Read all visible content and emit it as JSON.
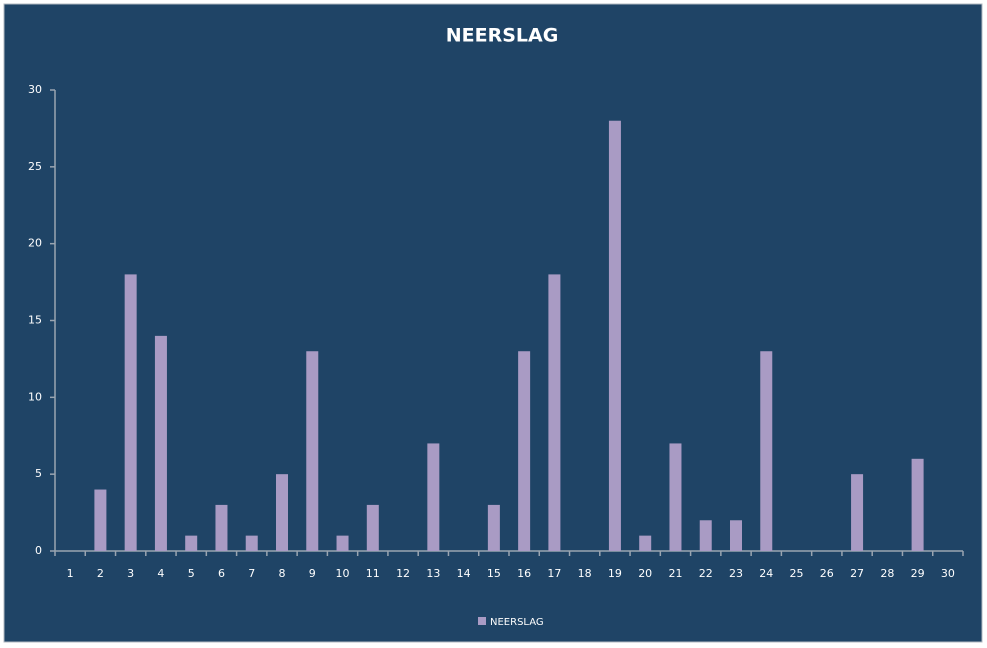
{
  "chart_data": {
    "type": "bar",
    "title": "NEERSLAG",
    "categories": [
      "1",
      "2",
      "3",
      "4",
      "5",
      "6",
      "7",
      "8",
      "9",
      "10",
      "11",
      "12",
      "13",
      "14",
      "15",
      "16",
      "17",
      "18",
      "19",
      "20",
      "21",
      "22",
      "23",
      "24",
      "25",
      "26",
      "27",
      "28",
      "29",
      "30"
    ],
    "series": [
      {
        "name": "NEERSLAG",
        "color": "#a99bc4",
        "values": [
          0,
          4,
          18,
          14,
          1,
          3,
          1,
          5,
          13,
          1,
          3,
          0,
          7,
          0,
          3,
          13,
          18,
          0,
          28,
          1,
          7,
          2,
          2,
          13,
          0,
          0,
          5,
          0,
          6,
          0
        ]
      }
    ],
    "ylim": [
      0,
      30
    ],
    "yticks": [
      0,
      5,
      10,
      15,
      20,
      25,
      30
    ],
    "grid": false,
    "legend": "bottom"
  }
}
